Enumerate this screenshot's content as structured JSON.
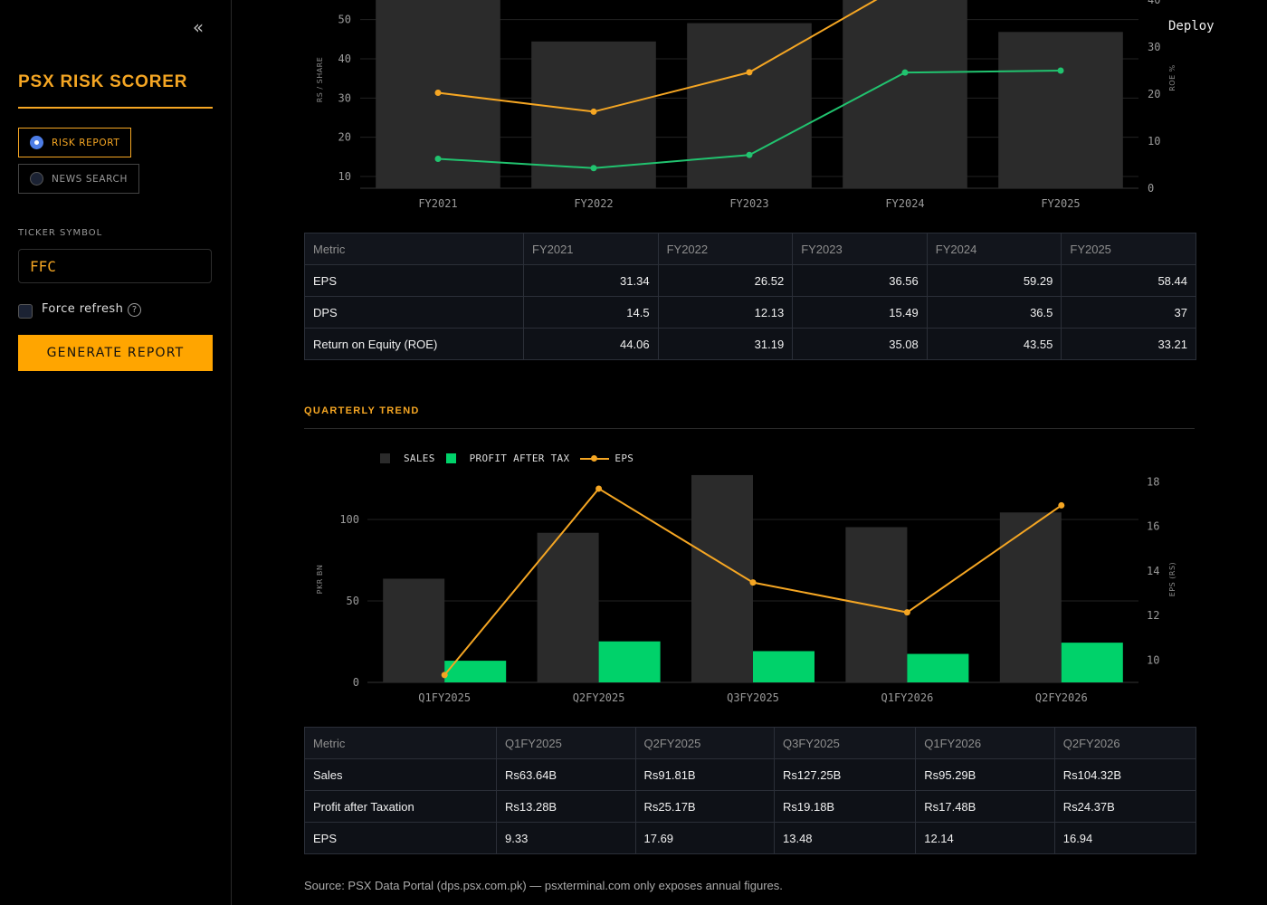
{
  "sidebar": {
    "title": "PSX RISK SCORER",
    "nav": [
      {
        "label": "RISK REPORT",
        "active": true
      },
      {
        "label": "NEWS SEARCH",
        "active": false
      }
    ],
    "ticker_label": "TICKER SYMBOL",
    "ticker_value": "FFC",
    "force_refresh_label": "Force refresh",
    "generate_label": "GENERATE REPORT"
  },
  "header": {
    "deploy_label": "Deploy"
  },
  "colors": {
    "accent": "#f5a623",
    "sales_bar": "#2b2b2b",
    "profit_bar": "#00d26a",
    "eps_line": "#f5a623",
    "dps_line": "#21c36f"
  },
  "chart_data": [
    {
      "type": "bar",
      "categories": [
        "FY2021",
        "FY2022",
        "FY2023",
        "FY2024",
        "FY2025"
      ],
      "ylabel": "RS / SHARE",
      "y2label": "ROE %",
      "ylim": [
        7,
        55
      ],
      "y2lim": [
        0,
        40
      ],
      "yticks": [
        "10",
        "20",
        "30",
        "40",
        "50"
      ],
      "y2ticks": [
        "0",
        "10",
        "20",
        "30",
        "40"
      ],
      "series": [
        {
          "type": "bar",
          "axis": "y2",
          "values": [
            44.06,
            31.19,
            35.08,
            43.55,
            33.21
          ]
        },
        {
          "type": "line",
          "axis": "y",
          "values": [
            31.34,
            26.52,
            36.56,
            59.29,
            58.44
          ]
        },
        {
          "type": "line",
          "axis": "y",
          "values": [
            14.5,
            12.13,
            15.49,
            36.5,
            37
          ]
        }
      ]
    },
    {
      "type": "bar",
      "categories": [
        "Q1FY2025",
        "Q2FY2025",
        "Q3FY2025",
        "Q1FY2026",
        "Q2FY2026"
      ],
      "ylabel": "PKR BN",
      "y2label": "EPS (RS)",
      "ylim": [
        0,
        130
      ],
      "y2lim": [
        9,
        18.5
      ],
      "yticks": [
        "0",
        "50",
        "100"
      ],
      "y2ticks": [
        "10",
        "12",
        "14",
        "16",
        "18"
      ],
      "legend": [
        "SALES",
        "PROFIT AFTER TAX",
        "EPS"
      ],
      "series": [
        {
          "name": "SALES",
          "type": "bar",
          "axis": "y",
          "values": [
            63.64,
            91.81,
            127.25,
            95.29,
            104.32
          ]
        },
        {
          "name": "PROFIT AFTER TAX",
          "type": "bar",
          "axis": "y",
          "values": [
            13.28,
            25.17,
            19.18,
            17.48,
            24.37
          ]
        },
        {
          "name": "EPS",
          "type": "line",
          "axis": "y2",
          "values": [
            9.33,
            17.69,
            13.48,
            12.14,
            16.94
          ]
        }
      ]
    }
  ],
  "annual_table": {
    "headers": [
      "Metric",
      "FY2021",
      "FY2022",
      "FY2023",
      "FY2024",
      "FY2025"
    ],
    "rows": [
      [
        "EPS",
        "31.34",
        "26.52",
        "36.56",
        "59.29",
        "58.44"
      ],
      [
        "DPS",
        "14.5",
        "12.13",
        "15.49",
        "36.5",
        "37"
      ],
      [
        "Return on Equity (ROE)",
        "44.06",
        "31.19",
        "35.08",
        "43.55",
        "33.21"
      ]
    ]
  },
  "quarterly": {
    "title": "QUARTERLY TREND",
    "legend": {
      "sales": "SALES",
      "profit": "PROFIT AFTER TAX",
      "eps": "EPS"
    }
  },
  "quarterly_table": {
    "headers": [
      "Metric",
      "Q1FY2025",
      "Q2FY2025",
      "Q3FY2025",
      "Q1FY2026",
      "Q2FY2026"
    ],
    "rows": [
      [
        "Sales",
        "Rs63.64B",
        "Rs91.81B",
        "Rs127.25B",
        "Rs95.29B",
        "Rs104.32B"
      ],
      [
        "Profit after Taxation",
        "Rs13.28B",
        "Rs25.17B",
        "Rs19.18B",
        "Rs17.48B",
        "Rs24.37B"
      ],
      [
        "EPS",
        "9.33",
        "17.69",
        "13.48",
        "12.14",
        "16.94"
      ]
    ]
  },
  "source_text": "Source: PSX Data Portal (dps.psx.com.pk) — psxterminal.com only exposes annual figures."
}
